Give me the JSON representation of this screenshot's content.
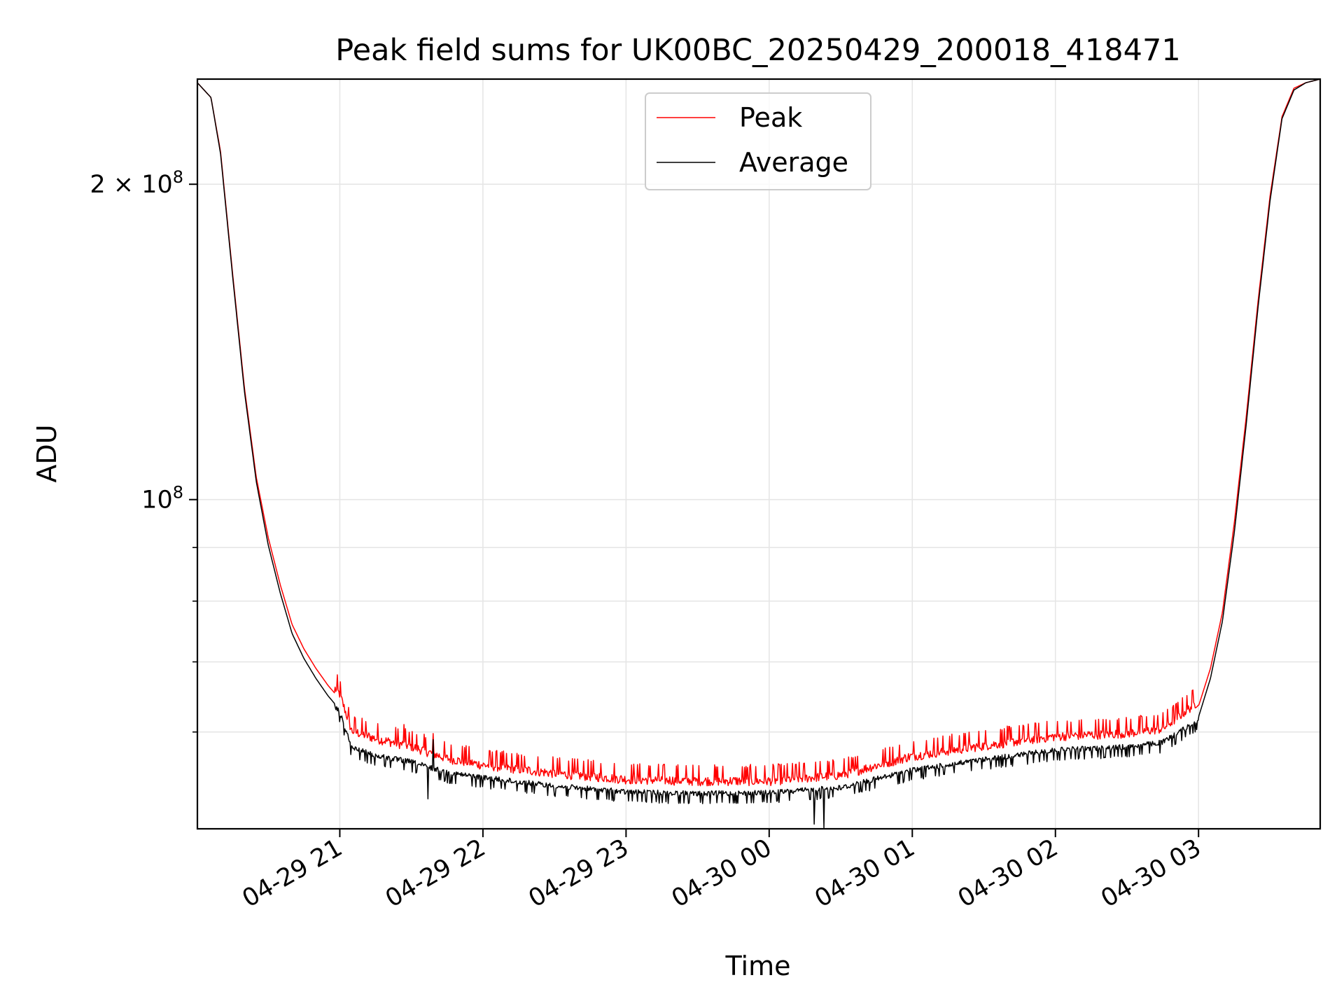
{
  "chart_data": {
    "type": "line",
    "title": "Peak field sums for UK00BC_20250429_200018_418471",
    "xlabel": "Time",
    "ylabel": "ADU",
    "y_scale": "log",
    "ylim": [
      48500000,
      252000000
    ],
    "xlim": [
      "2025-04-29 20:00:18",
      "2025-04-30 03:51:00"
    ],
    "x_ticks": [
      "2025-04-29 21:00",
      "2025-04-29 22:00",
      "2025-04-29 23:00",
      "2025-04-30 00:00",
      "2025-04-30 01:00",
      "2025-04-30 02:00",
      "2025-04-30 03:00"
    ],
    "x_tick_labels": [
      "04-29 21",
      "04-29 22",
      "04-29 23",
      "04-30 00",
      "04-30 01",
      "04-30 02",
      "04-30 03"
    ],
    "y_major_ticks": [
      100000000,
      200000000
    ],
    "y_major_tick_labels": [
      {
        "base": "10",
        "exp": "8",
        "prefix": ""
      },
      {
        "base": "10",
        "exp": "8",
        "prefix": "2 × "
      }
    ],
    "y_minor_ticks": [
      60000000,
      70000000,
      80000000,
      90000000
    ],
    "grid": true,
    "legend_position": "top-center",
    "series": [
      {
        "name": "Peak",
        "color": "#ff0000",
        "x": [
          "2025-04-29 20:00:18",
          "2025-04-29 20:06",
          "2025-04-29 20:10",
          "2025-04-29 20:15",
          "2025-04-29 20:20",
          "2025-04-29 20:25",
          "2025-04-29 20:30",
          "2025-04-29 20:35",
          "2025-04-29 20:40",
          "2025-04-29 20:45",
          "2025-04-29 20:50",
          "2025-04-29 20:55",
          "2025-04-29 21:00",
          "2025-04-29 21:05",
          "2025-04-29 21:15",
          "2025-04-29 21:30",
          "2025-04-29 21:45",
          "2025-04-29 22:00",
          "2025-04-29 22:30",
          "2025-04-29 23:00",
          "2025-04-29 23:30",
          "2025-04-30 00:00",
          "2025-04-30 00:30",
          "2025-04-30 01:00",
          "2025-04-30 01:30",
          "2025-04-30 02:00",
          "2025-04-30 02:30",
          "2025-04-30 02:45",
          "2025-04-30 03:00",
          "2025-04-30 03:05",
          "2025-04-30 03:10",
          "2025-04-30 03:15",
          "2025-04-30 03:20",
          "2025-04-30 03:25",
          "2025-04-30 03:30",
          "2025-04-30 03:35",
          "2025-04-30 03:40",
          "2025-04-30 03:45",
          "2025-04-30 03:51"
        ],
        "y": [
          250000000,
          242000000,
          215000000,
          165000000,
          128000000,
          105000000,
          92000000,
          83000000,
          76000000,
          72000000,
          69000000,
          66500000,
          64500000,
          59500000,
          58500000,
          57500000,
          56000000,
          55200000,
          54200000,
          53500000,
          53300000,
          53300000,
          54000000,
          56300000,
          57600000,
          58800000,
          59200000,
          59800000,
          63500000,
          69000000,
          78000000,
          95000000,
          120000000,
          155000000,
          195000000,
          232000000,
          247000000,
          250000000,
          252000000
        ]
      },
      {
        "name": "Average",
        "color": "#000000",
        "x": [
          "2025-04-29 20:00:18",
          "2025-04-29 20:06",
          "2025-04-29 20:10",
          "2025-04-29 20:15",
          "2025-04-29 20:20",
          "2025-04-29 20:25",
          "2025-04-29 20:30",
          "2025-04-29 20:35",
          "2025-04-29 20:40",
          "2025-04-29 20:45",
          "2025-04-29 20:50",
          "2025-04-29 20:55",
          "2025-04-29 21:00",
          "2025-04-29 21:05",
          "2025-04-29 21:15",
          "2025-04-29 21:30",
          "2025-04-29 21:45",
          "2025-04-29 22:00",
          "2025-04-29 22:30",
          "2025-04-29 23:00",
          "2025-04-29 23:30",
          "2025-04-30 00:00",
          "2025-04-30 00:30",
          "2025-04-30 01:00",
          "2025-04-30 01:30",
          "2025-04-30 02:00",
          "2025-04-30 02:30",
          "2025-04-30 02:45",
          "2025-04-30 03:00",
          "2025-04-30 03:05",
          "2025-04-30 03:10",
          "2025-04-30 03:15",
          "2025-04-30 03:20",
          "2025-04-30 03:25",
          "2025-04-30 03:30",
          "2025-04-30 03:35",
          "2025-04-30 03:40",
          "2025-04-30 03:45",
          "2025-04-30 03:51"
        ],
        "y": [
          250000000,
          242000000,
          214000000,
          164000000,
          127000000,
          104000000,
          90500000,
          81500000,
          74500000,
          70500000,
          67500000,
          65000000,
          63000000,
          58300000,
          57300000,
          56500000,
          55200000,
          54600000,
          53600000,
          52900000,
          52700000,
          52800000,
          53400000,
          55500000,
          56800000,
          58000000,
          58400000,
          59000000,
          62000000,
          67500000,
          76500000,
          93000000,
          118000000,
          153000000,
          193000000,
          231000000,
          246000000,
          250000000,
          252000000
        ]
      }
    ],
    "annotations": [
      {
        "series": "Peak",
        "x": "2025-04-29 21:27",
        "y": 61000000,
        "kind": "spike"
      },
      {
        "series": "Peak",
        "x": "2025-04-29 21:39",
        "y": 59800000,
        "kind": "spike"
      },
      {
        "series": "Average",
        "x": "2025-04-29 21:39",
        "y": 59000000,
        "kind": "spike"
      },
      {
        "series": "Average",
        "x": "2025-04-29 21:37",
        "y": 51800000,
        "kind": "dip"
      },
      {
        "series": "Average",
        "x": "2025-04-30 00:19",
        "y": 49000000,
        "kind": "dip"
      },
      {
        "series": "Average",
        "x": "2025-04-30 00:23",
        "y": 48600000,
        "kind": "dip"
      }
    ]
  }
}
